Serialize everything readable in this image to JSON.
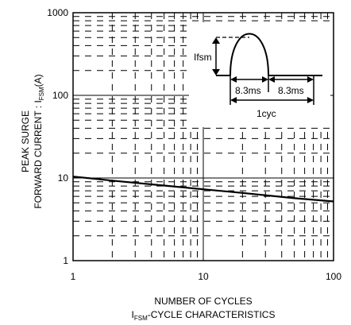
{
  "chart_data": {
    "type": "line",
    "x_scale": "log",
    "y_scale": "log",
    "xlim": [
      1,
      100
    ],
    "ylim": [
      1,
      1000
    ],
    "x_ticks": [
      "1",
      "10",
      "100"
    ],
    "y_ticks": [
      "1",
      "10",
      "100",
      "1000"
    ],
    "grid": true,
    "grid_style": "dashed",
    "ylabel_line1": "PEAK SURGE",
    "ylabel_line2_main": "FORWARD CURRENT : I",
    "ylabel_line2_sub": "FSM",
    "ylabel_line2_unit": "(A)",
    "xlabel": "NUMBER OF CYCLES",
    "caption_main": "I",
    "caption_sub": "FSM",
    "caption_rest": "-CYCLE CHARACTERISTICS",
    "series": [
      {
        "x": [
          1,
          2,
          5,
          10,
          20,
          50,
          100
        ],
        "y": [
          10.4,
          9.3,
          8.1,
          7.3,
          6.6,
          5.7,
          5.2
        ]
      }
    ],
    "inset": {
      "ifsm_label": "Ifsm",
      "half_period_label_1": "8.3ms",
      "half_period_label_2": "8.3ms",
      "cycle_label": "1cyc"
    }
  }
}
